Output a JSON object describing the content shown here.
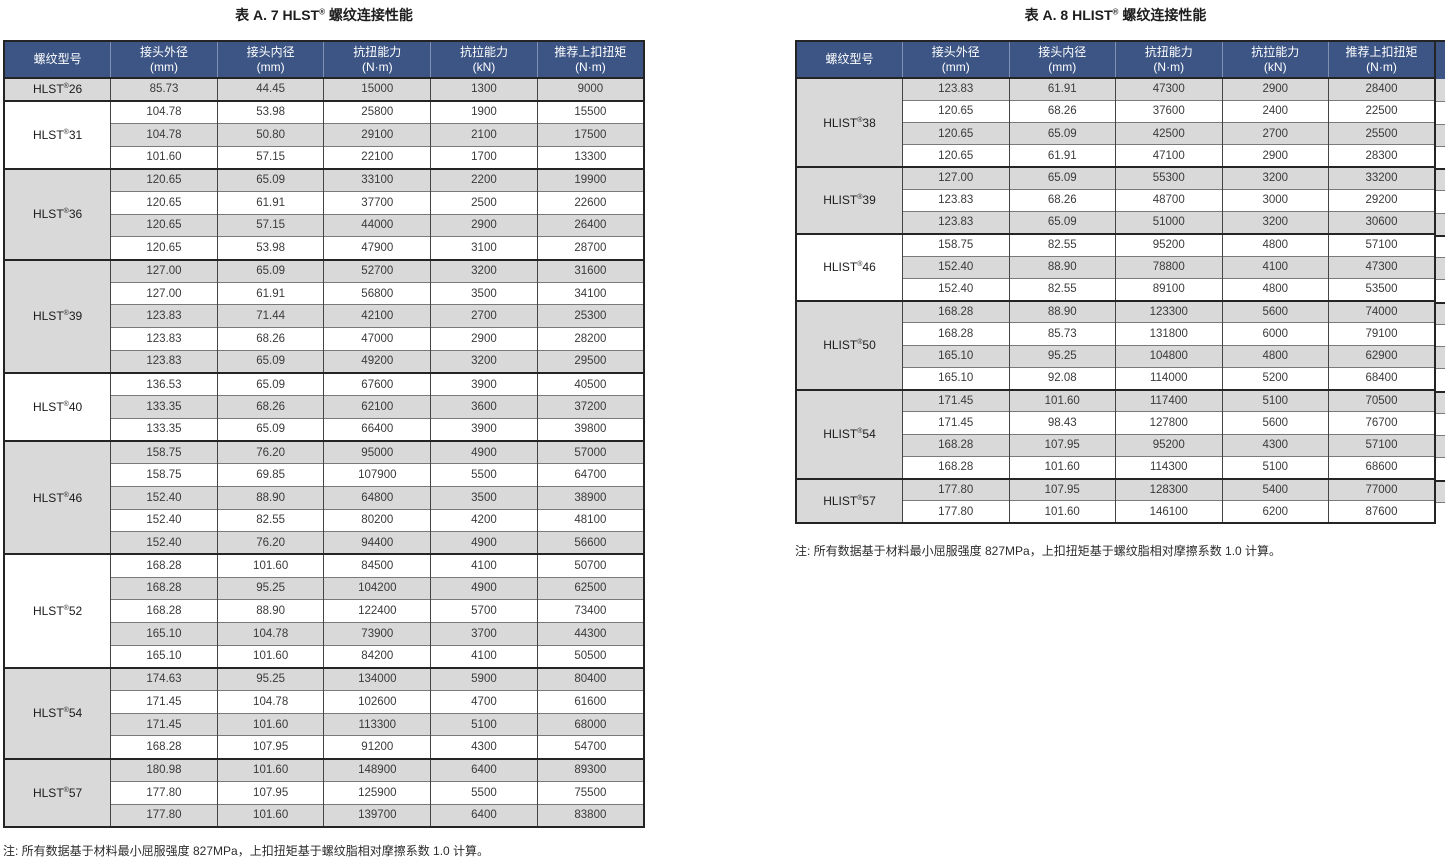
{
  "colors": {
    "header_bg": "#3C5585",
    "header_text": "#FFFFFF",
    "header_separator": "#8091B4",
    "row_gray": "#D9D9D9",
    "row_white": "#FFFFFF",
    "border_dark": "#242424",
    "border_row": "#7A7A7A",
    "border_column": "#454545"
  },
  "columns": [
    {
      "label": "螺纹型号",
      "unit": ""
    },
    {
      "label": "接头外径",
      "unit": "(mm)"
    },
    {
      "label": "接头内径",
      "unit": "(mm)"
    },
    {
      "label": "抗扭能力",
      "unit": "(N·m)"
    },
    {
      "label": "抗拉能力",
      "unit": "(kN)"
    },
    {
      "label": "推荐上扣扭矩",
      "unit": "(N·m)"
    }
  ],
  "tables": [
    {
      "id": "a7",
      "title": {
        "pre": "表 A. 7 HLST",
        "sup": "®",
        "post": " 螺纹连接性能"
      },
      "note": "注: 所有数据基于材料最小屈服强度 827MPa，上扣扭矩基于螺纹脂相对摩擦系数 1.0 计算。",
      "groups": [
        {
          "model": {
            "pre": "HLST",
            "sup": "®",
            "num": "26"
          },
          "rows": [
            [
              "85.73",
              "44.45",
              "15000",
              "1300",
              "9000"
            ]
          ]
        },
        {
          "model": {
            "pre": "HLST",
            "sup": "®",
            "num": "31"
          },
          "rows": [
            [
              "104.78",
              "53.98",
              "25800",
              "1900",
              "15500"
            ],
            [
              "104.78",
              "50.80",
              "29100",
              "2100",
              "17500"
            ],
            [
              "101.60",
              "57.15",
              "22100",
              "1700",
              "13300"
            ]
          ]
        },
        {
          "model": {
            "pre": "HLST",
            "sup": "®",
            "num": "36"
          },
          "rows": [
            [
              "120.65",
              "65.09",
              "33100",
              "2200",
              "19900"
            ],
            [
              "120.65",
              "61.91",
              "37700",
              "2500",
              "22600"
            ],
            [
              "120.65",
              "57.15",
              "44000",
              "2900",
              "26400"
            ],
            [
              "120.65",
              "53.98",
              "47900",
              "3100",
              "28700"
            ]
          ]
        },
        {
          "model": {
            "pre": "HLST",
            "sup": "®",
            "num": "39"
          },
          "rows": [
            [
              "127.00",
              "65.09",
              "52700",
              "3200",
              "31600"
            ],
            [
              "127.00",
              "61.91",
              "56800",
              "3500",
              "34100"
            ],
            [
              "123.83",
              "71.44",
              "42100",
              "2700",
              "25300"
            ],
            [
              "123.83",
              "68.26",
              "47000",
              "2900",
              "28200"
            ],
            [
              "123.83",
              "65.09",
              "49200",
              "3200",
              "29500"
            ]
          ]
        },
        {
          "model": {
            "pre": "HLST",
            "sup": "®",
            "num": "40"
          },
          "rows": [
            [
              "136.53",
              "65.09",
              "67600",
              "3900",
              "40500"
            ],
            [
              "133.35",
              "68.26",
              "62100",
              "3600",
              "37200"
            ],
            [
              "133.35",
              "65.09",
              "66400",
              "3900",
              "39800"
            ]
          ]
        },
        {
          "model": {
            "pre": "HLST",
            "sup": "®",
            "num": "46"
          },
          "rows": [
            [
              "158.75",
              "76.20",
              "95000",
              "4900",
              "57000"
            ],
            [
              "158.75",
              "69.85",
              "107900",
              "5500",
              "64700"
            ],
            [
              "152.40",
              "88.90",
              "64800",
              "3500",
              "38900"
            ],
            [
              "152.40",
              "82.55",
              "80200",
              "4200",
              "48100"
            ],
            [
              "152.40",
              "76.20",
              "94400",
              "4900",
              "56600"
            ]
          ]
        },
        {
          "model": {
            "pre": "HLST",
            "sup": "®",
            "num": "52"
          },
          "rows": [
            [
              "168.28",
              "101.60",
              "84500",
              "4100",
              "50700"
            ],
            [
              "168.28",
              "95.25",
              "104200",
              "4900",
              "62500"
            ],
            [
              "168.28",
              "88.90",
              "122400",
              "5700",
              "73400"
            ],
            [
              "165.10",
              "104.78",
              "73900",
              "3700",
              "44300"
            ],
            [
              "165.10",
              "101.60",
              "84200",
              "4100",
              "50500"
            ]
          ]
        },
        {
          "model": {
            "pre": "HLST",
            "sup": "®",
            "num": "54"
          },
          "rows": [
            [
              "174.63",
              "95.25",
              "134000",
              "5900",
              "80400"
            ],
            [
              "171.45",
              "104.78",
              "102600",
              "4700",
              "61600"
            ],
            [
              "171.45",
              "101.60",
              "113300",
              "5100",
              "68000"
            ],
            [
              "168.28",
              "107.95",
              "91200",
              "4300",
              "54700"
            ]
          ]
        },
        {
          "model": {
            "pre": "HLST",
            "sup": "®",
            "num": "57"
          },
          "rows": [
            [
              "180.98",
              "101.60",
              "148900",
              "6400",
              "89300"
            ],
            [
              "177.80",
              "107.95",
              "125900",
              "5500",
              "75500"
            ],
            [
              "177.80",
              "101.60",
              "139700",
              "6400",
              "83800"
            ]
          ]
        }
      ]
    },
    {
      "id": "a8",
      "title": {
        "pre": "表 A. 8 HLIST",
        "sup": "®",
        "post": " 螺纹连接性能"
      },
      "note": "注: 所有数据基于材料最小屈服强度 827MPa，上扣扭矩基于螺纹脂相对摩擦系数 1.0 计算。",
      "groups": [
        {
          "model": {
            "pre": "HLIST",
            "sup": "®",
            "num": "38"
          },
          "rows": [
            [
              "123.83",
              "61.91",
              "47300",
              "2900",
              "28400"
            ],
            [
              "120.65",
              "68.26",
              "37600",
              "2400",
              "22500"
            ],
            [
              "120.65",
              "65.09",
              "42500",
              "2700",
              "25500"
            ],
            [
              "120.65",
              "61.91",
              "47100",
              "2900",
              "28300"
            ]
          ]
        },
        {
          "model": {
            "pre": "HLIST",
            "sup": "®",
            "num": "39"
          },
          "rows": [
            [
              "127.00",
              "65.09",
              "55300",
              "3200",
              "33200"
            ],
            [
              "123.83",
              "68.26",
              "48700",
              "3000",
              "29200"
            ],
            [
              "123.83",
              "65.09",
              "51000",
              "3200",
              "30600"
            ]
          ]
        },
        {
          "model": {
            "pre": "HLIST",
            "sup": "®",
            "num": "46"
          },
          "rows": [
            [
              "158.75",
              "82.55",
              "95200",
              "4800",
              "57100"
            ],
            [
              "152.40",
              "88.90",
              "78800",
              "4100",
              "47300"
            ],
            [
              "152.40",
              "82.55",
              "89100",
              "4800",
              "53500"
            ]
          ]
        },
        {
          "model": {
            "pre": "HLIST",
            "sup": "®",
            "num": "50"
          },
          "rows": [
            [
              "168.28",
              "88.90",
              "123300",
              "5600",
              "74000"
            ],
            [
              "168.28",
              "85.73",
              "131800",
              "6000",
              "79100"
            ],
            [
              "165.10",
              "95.25",
              "104800",
              "4800",
              "62900"
            ],
            [
              "165.10",
              "92.08",
              "114000",
              "5200",
              "68400"
            ]
          ]
        },
        {
          "model": {
            "pre": "HLIST",
            "sup": "®",
            "num": "54"
          },
          "rows": [
            [
              "171.45",
              "101.60",
              "117400",
              "5100",
              "70500"
            ],
            [
              "171.45",
              "98.43",
              "127800",
              "5600",
              "76700"
            ],
            [
              "168.28",
              "107.95",
              "95200",
              "4300",
              "57100"
            ],
            [
              "168.28",
              "101.60",
              "114300",
              "5100",
              "68600"
            ]
          ]
        },
        {
          "model": {
            "pre": "HLIST",
            "sup": "®",
            "num": "57"
          },
          "rows": [
            [
              "177.80",
              "107.95",
              "128300",
              "5400",
              "77000"
            ],
            [
              "177.80",
              "101.60",
              "146100",
              "6200",
              "87600"
            ]
          ]
        }
      ]
    }
  ]
}
